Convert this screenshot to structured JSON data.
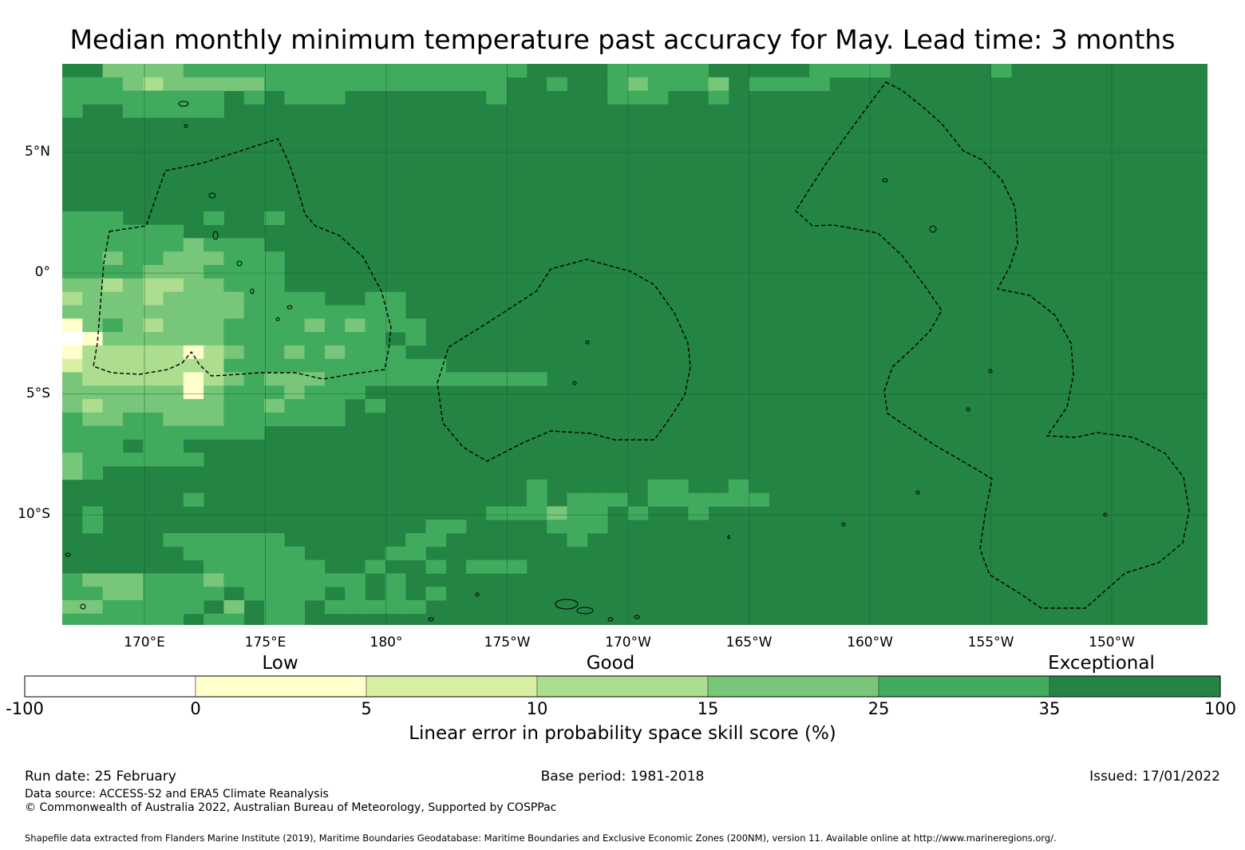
{
  "title": "Median monthly minimum temperature past accuracy for May. Lead time: 3 months",
  "map": {
    "lat_labels": [
      "5°N",
      "0°",
      "5°S",
      "10°S"
    ],
    "lon_labels": [
      "170°E",
      "175°E",
      "180°",
      "175°W",
      "170°W",
      "165°W",
      "160°W",
      "155°W",
      "150°W"
    ],
    "background_category": 6,
    "colors": [
      "#ffffff",
      "#ffffcc",
      "#d9f0a3",
      "#addd8e",
      "#78c679",
      "#41ab5d",
      "#238443"
    ],
    "boundary_color": "#000000",
    "grid_color": "#1a5e30"
  },
  "colorbar": {
    "categories": [
      "Low",
      "Good",
      "Exceptional"
    ],
    "ticks": [
      "-100",
      "0",
      "5",
      "10",
      "15",
      "25",
      "35",
      "100"
    ],
    "colors": [
      "#ffffff",
      "#ffffcc",
      "#d9f0a3",
      "#addd8e",
      "#78c679",
      "#41ab5d",
      "#238443"
    ],
    "label": "Linear error in probability space skill score (%)"
  },
  "footer": {
    "run_date": "Run date: 25 February",
    "base_period": "Base period: 1981-2018",
    "issued": "Issued: 17/01/2022",
    "data_source": "Data source: ACCESS-S2 and ERA5 Climate Reanalysis",
    "copyright": "© Commonwealth of Australia 2022, Australian Bureau of Meteorology, Supported by COSPPac",
    "shapefile": "Shapefile data extracted from Flanders Marine Institute (2019), Maritime Boundaries Geodatabase: Maritime Boundaries and Exclusive Economic Zones (200NM), version 11. Available online at http://www.marineregions.org/."
  }
}
